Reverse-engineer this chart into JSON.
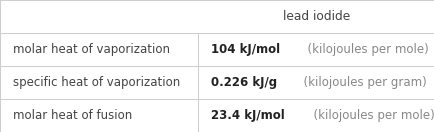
{
  "title": "lead iodide",
  "rows": [
    {
      "label": "molar heat of vaporization",
      "value_bold": "104 kJ/mol",
      "value_normal": "  (kilojoules per mole)"
    },
    {
      "label": "specific heat of vaporization",
      "value_bold": "0.226 kJ/g",
      "value_normal": "  (kilojoules per gram)"
    },
    {
      "label": "molar heat of fusion",
      "value_bold": "23.4 kJ/mol",
      "value_normal": "  (kilojoules per mole)"
    }
  ],
  "col_split": 0.455,
  "background_color": "#ffffff",
  "line_color": "#cccccc",
  "label_color": "#444444",
  "value_bold_color": "#222222",
  "value_normal_color": "#888888",
  "title_color": "#444444",
  "label_fontsize": 8.5,
  "value_fontsize": 8.5,
  "title_fontsize": 8.8
}
